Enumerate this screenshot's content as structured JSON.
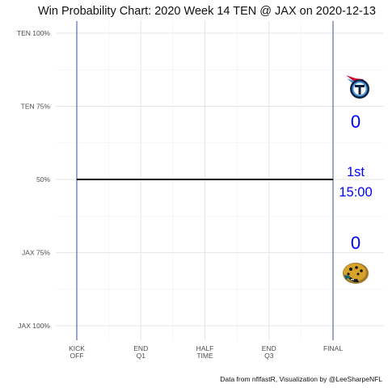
{
  "chart_data": {
    "type": "line",
    "title": "Win Probability Chart: 2020 Week 14 TEN @ JAX on 2020-12-13",
    "y_ticks": [
      {
        "value": 1.0,
        "label": "TEN 100%"
      },
      {
        "value": 0.75,
        "label": "TEN 75%"
      },
      {
        "value": 0.5,
        "label": "50%"
      },
      {
        "value": 0.25,
        "label": "JAX 75%"
      },
      {
        "value": 0.0,
        "label": "JAX 100%"
      }
    ],
    "x_ticks": [
      {
        "value": 0,
        "line1": "KICK",
        "line2": "OFF"
      },
      {
        "value": 15,
        "line1": "END",
        "line2": "Q1"
      },
      {
        "value": 30,
        "line1": "HALF",
        "line2": "TIME"
      },
      {
        "value": 45,
        "line1": "END",
        "line2": "Q3"
      },
      {
        "value": 60,
        "line1": "FINAL",
        "line2": ""
      }
    ],
    "xlim": [
      0,
      60
    ],
    "ylim": [
      0,
      1
    ],
    "grid": true,
    "series": [
      {
        "values": [
          {
            "x": 0,
            "y": 0.5
          },
          {
            "x": 60,
            "y": 0.5
          }
        ],
        "color": "#000000"
      }
    ],
    "vertical_lines": [
      0,
      60
    ],
    "vertical_line_color": "#2b3a8c",
    "score_color": "#0000ff",
    "home_team": {
      "abbr": "JAX",
      "score": "0",
      "logo_icon": "jaguars-logo-icon"
    },
    "away_team": {
      "abbr": "TEN",
      "score": "0",
      "logo_icon": "titans-logo-icon"
    },
    "game_state": {
      "quarter": "1st",
      "clock": "15:00"
    },
    "caption": "Data from nflfastR, Visualization by @LeeSharpeNFL"
  }
}
